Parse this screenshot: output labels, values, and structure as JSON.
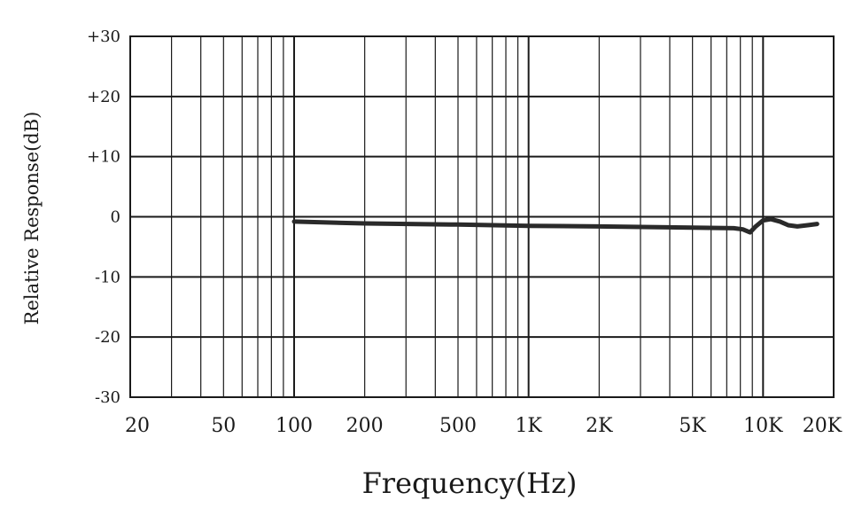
{
  "chart_data": {
    "type": "line",
    "title": "",
    "xlabel": "Frequency(Hz)",
    "ylabel": "Relative Response(dB)",
    "x_scale": "log",
    "xlim": [
      20,
      20000
    ],
    "ylim": [
      -30,
      30
    ],
    "grid": true,
    "x_tick_values": [
      20,
      50,
      100,
      200,
      500,
      1000,
      2000,
      5000,
      10000,
      20000
    ],
    "x_tick_labels": [
      "20",
      "50",
      "100",
      "200",
      "500",
      "1K",
      "2K",
      "5K",
      "10K",
      "20K"
    ],
    "y_tick_values": [
      30,
      20,
      10,
      0,
      -10,
      -20,
      -30
    ],
    "y_tick_labels": [
      "+30",
      "+20",
      "+10",
      "0",
      "-10",
      "-20",
      "-30"
    ],
    "series_color": "#2a2a2a",
    "series": [
      {
        "x": [
          100,
          200,
          500,
          1000,
          2000,
          5000,
          7500,
          8200,
          8800,
          9300,
          10000,
          10800,
          11800,
          12800,
          14000,
          15500,
          17000
        ],
        "y": [
          -0.8,
          -1.1,
          -1.3,
          -1.5,
          -1.6,
          -1.8,
          -1.9,
          -2.1,
          -2.6,
          -1.6,
          -0.6,
          -0.4,
          -0.8,
          -1.4,
          -1.6,
          -1.4,
          -1.2
        ]
      }
    ]
  }
}
